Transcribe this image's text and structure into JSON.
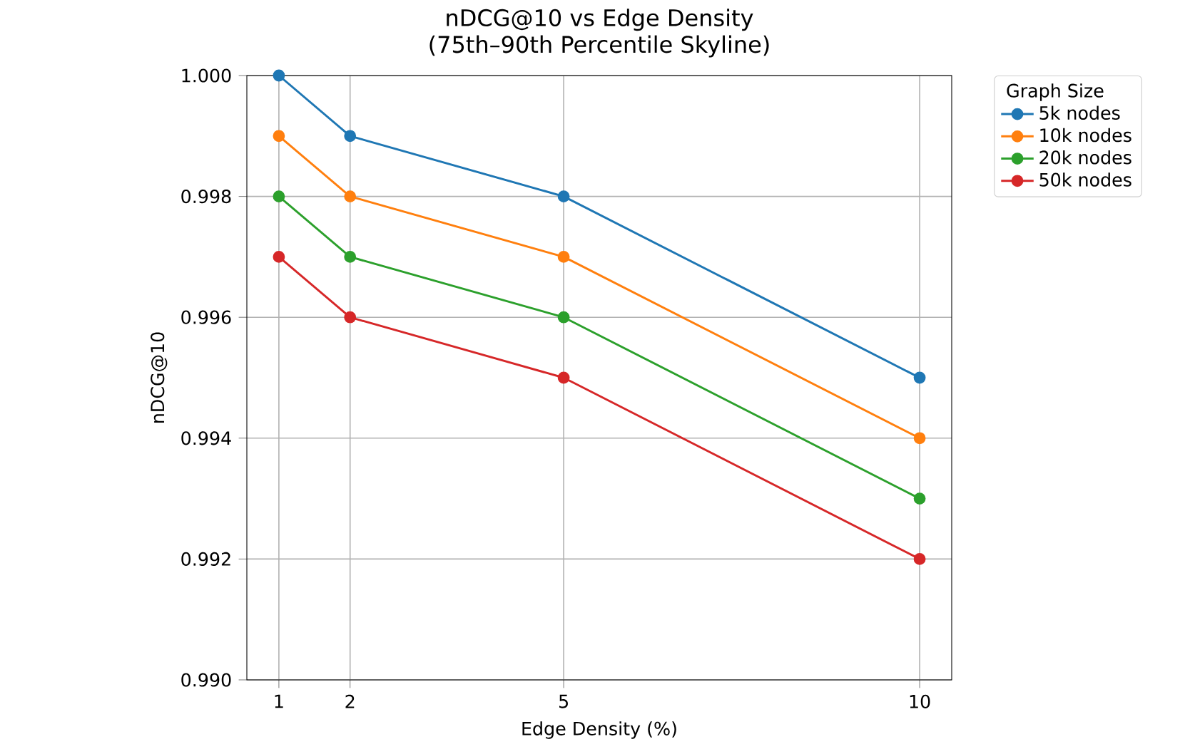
{
  "chart_data": {
    "type": "line",
    "title": "nDCG@10 vs Edge Density",
    "subtitle": "(75th–90th Percentile Skyline)",
    "xlabel": "Edge Density (%)",
    "ylabel": "nDCG@10",
    "legend_title": "Graph Size",
    "x": [
      1,
      2,
      5,
      10
    ],
    "series": [
      {
        "name": "5k nodes",
        "color": "#1f77b4",
        "values": [
          1.0,
          0.999,
          0.998,
          0.995
        ]
      },
      {
        "name": "10k nodes",
        "color": "#ff7f0e",
        "values": [
          0.999,
          0.998,
          0.997,
          0.994
        ]
      },
      {
        "name": "20k nodes",
        "color": "#2ca02c",
        "values": [
          0.998,
          0.997,
          0.996,
          0.993
        ]
      },
      {
        "name": "50k nodes",
        "color": "#d62728",
        "values": [
          0.997,
          0.996,
          0.995,
          0.992
        ]
      }
    ],
    "xlim": [
      0.55,
      10.45
    ],
    "ylim": [
      0.99,
      1.0
    ],
    "xticks": [
      1,
      2,
      5,
      10
    ],
    "yticks": [
      {
        "value": 0.99,
        "label": "0.990"
      },
      {
        "value": 0.992,
        "label": "0.992"
      },
      {
        "value": 0.994,
        "label": "0.994"
      },
      {
        "value": 0.996,
        "label": "0.996"
      },
      {
        "value": 0.998,
        "label": "0.998"
      },
      {
        "value": 1.0,
        "label": "1.000"
      }
    ],
    "grid": true,
    "legend": "top right",
    "marker": "circle",
    "line_style": "solid"
  }
}
